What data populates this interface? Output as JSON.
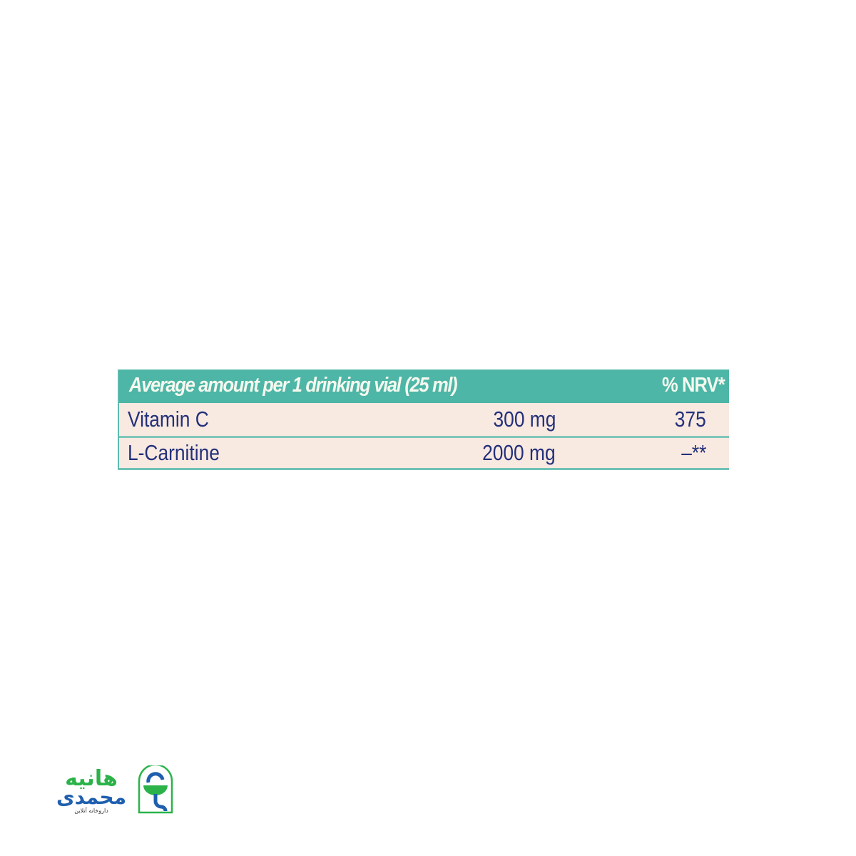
{
  "table": {
    "header": {
      "title": "Average amount per 1 drinking vial (25 ml)",
      "nrv": "% NRV*"
    },
    "rows": [
      {
        "name": "Vitamin C",
        "amount": "300 mg",
        "nrv": "375"
      },
      {
        "name": "L-Carnitine",
        "amount": "2000 mg",
        "nrv": "–**"
      }
    ]
  },
  "logo": {
    "name_line1": "هانیه",
    "name_line2": "محمدی",
    "tagline": "داروخانه آنلاین"
  },
  "colors": {
    "header": "#4db6a6",
    "row_bg": "#f8e9e1",
    "text": "#23307a",
    "logo_green": "#2bb34a",
    "logo_blue": "#1f5fae"
  }
}
